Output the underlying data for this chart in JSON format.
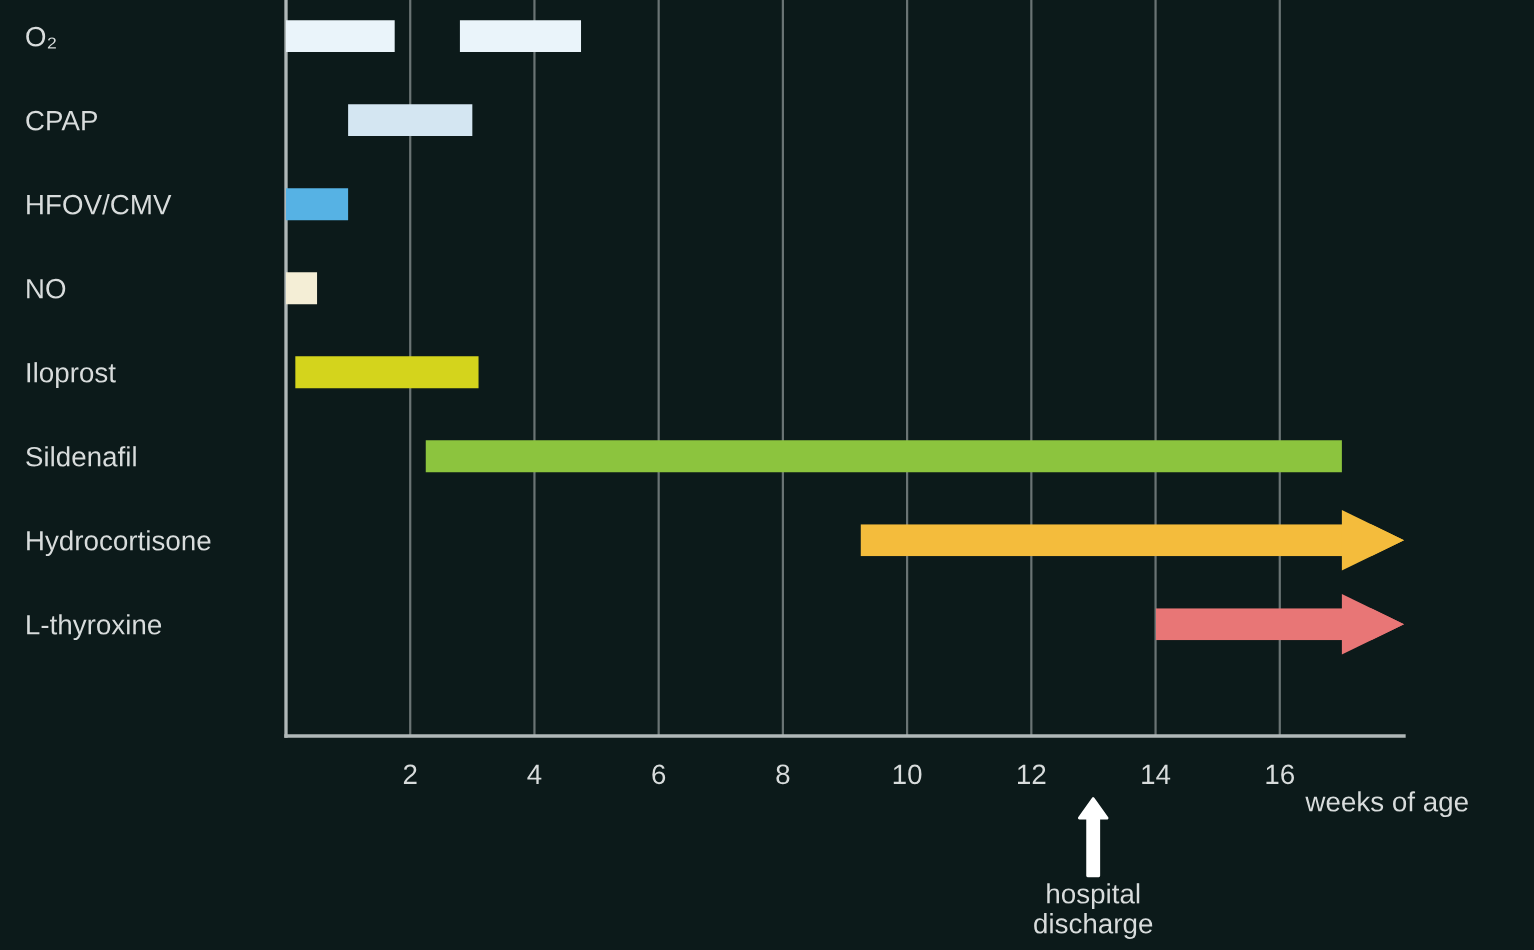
{
  "chart_data": {
    "type": "bar",
    "orientation": "horizontal",
    "categories": [
      "O₂",
      "CPAP",
      "HFOV/CMV",
      "NO",
      "Iloprost",
      "Sildenafil",
      "Hydrocortisone",
      "L-thyroxine"
    ],
    "series": [
      {
        "base": [
          0,
          1.0,
          0,
          0,
          0.15,
          2.25,
          9.25,
          14.0
        ],
        "values": [
          1.75,
          2.0,
          1.0,
          0.5,
          2.95,
          14.75,
          8.75,
          4.0
        ],
        "colors": [
          "#eaf4fa",
          "#d4e6f2",
          "#56b2e4",
          "#f4eed6",
          "#d4d41c",
          "#8cc43e",
          "#f4bc3c",
          "#e87676"
        ]
      },
      {
        "base": [
          2.8,
          null,
          null,
          null,
          null,
          null,
          null,
          null
        ],
        "values": [
          1.95,
          null,
          null,
          null,
          null,
          null,
          null,
          null
        ],
        "colors": [
          "#eaf4fa",
          null,
          null,
          null,
          null,
          null,
          null,
          null
        ]
      }
    ],
    "xlabel": "weeks of age",
    "xlim": [
      0,
      18
    ],
    "xticks": [
      2,
      4,
      6,
      8,
      10,
      12,
      14,
      16
    ],
    "grid": "x",
    "annotations": [
      "hospital\ndischarge"
    ]
  }
}
